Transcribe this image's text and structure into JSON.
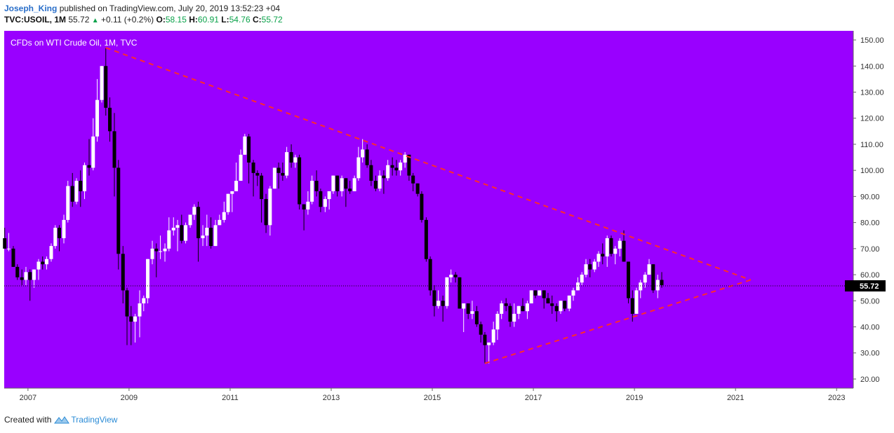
{
  "header": {
    "author": "Joseph_King",
    "published_text": "published on TradingView.com, July 20, 2019 13:52:23 +04",
    "symbol": "TVC:USOIL, 1M",
    "last": "55.72",
    "change": "+0.11 (+0.2%)",
    "open_label": "O:",
    "open": "58.15",
    "high_label": "H:",
    "high": "60.91",
    "low_label": "L:",
    "low": "54.76",
    "close_label": "C:",
    "close": "55.72"
  },
  "footer": {
    "created_with": "Created with",
    "brand": "TradingView"
  },
  "colors": {
    "background": "#9900ff",
    "bull": "#ffffff",
    "bear": "#000000",
    "trendline": "#ff2a2a",
    "axis_bg": "#ffffff"
  },
  "chart_data": {
    "type": "candlestick",
    "title": "CFDs on WTI Crude Oil, 1M, TVC",
    "x_ticks": [
      "2007",
      "2009",
      "2011",
      "2013",
      "2015",
      "2017",
      "2019",
      "2021",
      "2023"
    ],
    "y_ticks": [
      "150.00",
      "140.00",
      "130.00",
      "120.00",
      "110.00",
      "100.00",
      "90.00",
      "80.00",
      "70.00",
      "60.00",
      "50.00",
      "40.00",
      "30.00",
      "20.00"
    ],
    "ylim": [
      16.5,
      153.5
    ],
    "xlim": [
      2006.53,
      2023.33
    ],
    "last_price": 55.72,
    "last_price_label": "55.72",
    "grid": false,
    "candles": [
      {
        "t": 2006.54,
        "o": 74,
        "h": 78,
        "l": 70,
        "c": 70
      },
      {
        "t": 2006.62,
        "o": 70,
        "h": 76,
        "l": 69,
        "c": 70
      },
      {
        "t": 2006.71,
        "o": 70,
        "h": 71,
        "l": 63,
        "c": 63
      },
      {
        "t": 2006.79,
        "o": 63,
        "h": 64,
        "l": 58,
        "c": 59
      },
      {
        "t": 2006.88,
        "o": 59,
        "h": 62,
        "l": 56,
        "c": 58
      },
      {
        "t": 2006.96,
        "o": 58,
        "h": 63,
        "l": 56,
        "c": 61
      },
      {
        "t": 2007.04,
        "o": 61,
        "h": 62,
        "l": 50,
        "c": 58
      },
      {
        "t": 2007.12,
        "o": 58,
        "h": 62,
        "l": 55,
        "c": 62
      },
      {
        "t": 2007.21,
        "o": 62,
        "h": 66,
        "l": 58,
        "c": 65
      },
      {
        "t": 2007.29,
        "o": 65,
        "h": 67,
        "l": 62,
        "c": 64
      },
      {
        "t": 2007.37,
        "o": 64,
        "h": 67,
        "l": 62,
        "c": 66
      },
      {
        "t": 2007.46,
        "o": 66,
        "h": 72,
        "l": 65,
        "c": 71
      },
      {
        "t": 2007.54,
        "o": 71,
        "h": 79,
        "l": 70,
        "c": 78
      },
      {
        "t": 2007.62,
        "o": 78,
        "h": 79,
        "l": 69,
        "c": 74
      },
      {
        "t": 2007.71,
        "o": 74,
        "h": 83,
        "l": 72,
        "c": 81
      },
      {
        "t": 2007.79,
        "o": 81,
        "h": 96,
        "l": 80,
        "c": 94
      },
      {
        "t": 2007.88,
        "o": 94,
        "h": 99,
        "l": 86,
        "c": 88
      },
      {
        "t": 2007.96,
        "o": 88,
        "h": 97,
        "l": 87,
        "c": 96
      },
      {
        "t": 2008.04,
        "o": 96,
        "h": 100,
        "l": 86,
        "c": 92
      },
      {
        "t": 2008.12,
        "o": 92,
        "h": 103,
        "l": 89,
        "c": 102
      },
      {
        "t": 2008.21,
        "o": 102,
        "h": 112,
        "l": 98,
        "c": 101
      },
      {
        "t": 2008.29,
        "o": 101,
        "h": 120,
        "l": 100,
        "c": 113
      },
      {
        "t": 2008.37,
        "o": 113,
        "h": 135,
        "l": 111,
        "c": 127
      },
      {
        "t": 2008.46,
        "o": 127,
        "h": 140,
        "l": 126,
        "c": 140
      },
      {
        "t": 2008.54,
        "o": 140,
        "h": 147,
        "l": 121,
        "c": 124
      },
      {
        "t": 2008.62,
        "o": 124,
        "h": 128,
        "l": 111,
        "c": 115
      },
      {
        "t": 2008.71,
        "o": 115,
        "h": 122,
        "l": 90,
        "c": 101
      },
      {
        "t": 2008.79,
        "o": 101,
        "h": 104,
        "l": 62,
        "c": 68
      },
      {
        "t": 2008.88,
        "o": 68,
        "h": 71,
        "l": 49,
        "c": 54
      },
      {
        "t": 2008.96,
        "o": 54,
        "h": 55,
        "l": 33,
        "c": 44
      },
      {
        "t": 2009.04,
        "o": 44,
        "h": 48,
        "l": 33,
        "c": 42
      },
      {
        "t": 2009.12,
        "o": 42,
        "h": 45,
        "l": 34,
        "c": 44
      },
      {
        "t": 2009.21,
        "o": 44,
        "h": 54,
        "l": 36,
        "c": 49
      },
      {
        "t": 2009.29,
        "o": 49,
        "h": 52,
        "l": 46,
        "c": 51
      },
      {
        "t": 2009.37,
        "o": 51,
        "h": 66,
        "l": 49,
        "c": 66
      },
      {
        "t": 2009.46,
        "o": 66,
        "h": 73,
        "l": 64,
        "c": 70
      },
      {
        "t": 2009.54,
        "o": 70,
        "h": 72,
        "l": 59,
        "c": 69
      },
      {
        "t": 2009.62,
        "o": 69,
        "h": 75,
        "l": 66,
        "c": 69
      },
      {
        "t": 2009.71,
        "o": 69,
        "h": 72,
        "l": 65,
        "c": 70
      },
      {
        "t": 2009.79,
        "o": 70,
        "h": 82,
        "l": 69,
        "c": 77
      },
      {
        "t": 2009.88,
        "o": 77,
        "h": 82,
        "l": 75,
        "c": 78
      },
      {
        "t": 2009.96,
        "o": 78,
        "h": 81,
        "l": 69,
        "c": 79
      },
      {
        "t": 2010.04,
        "o": 79,
        "h": 83,
        "l": 72,
        "c": 73
      },
      {
        "t": 2010.12,
        "o": 73,
        "h": 80,
        "l": 72,
        "c": 79
      },
      {
        "t": 2010.21,
        "o": 79,
        "h": 83,
        "l": 78,
        "c": 83
      },
      {
        "t": 2010.29,
        "o": 83,
        "h": 87,
        "l": 81,
        "c": 86
      },
      {
        "t": 2010.37,
        "o": 86,
        "h": 88,
        "l": 65,
        "c": 74
      },
      {
        "t": 2010.46,
        "o": 74,
        "h": 79,
        "l": 71,
        "c": 75
      },
      {
        "t": 2010.54,
        "o": 75,
        "h": 83,
        "l": 71,
        "c": 78
      },
      {
        "t": 2010.62,
        "o": 78,
        "h": 82,
        "l": 70,
        "c": 71
      },
      {
        "t": 2010.71,
        "o": 71,
        "h": 81,
        "l": 71,
        "c": 79
      },
      {
        "t": 2010.79,
        "o": 79,
        "h": 83,
        "l": 79,
        "c": 81
      },
      {
        "t": 2010.88,
        "o": 81,
        "h": 88,
        "l": 80,
        "c": 84
      },
      {
        "t": 2010.96,
        "o": 84,
        "h": 91,
        "l": 83,
        "c": 91
      },
      {
        "t": 2011.04,
        "o": 91,
        "h": 92,
        "l": 84,
        "c": 92
      },
      {
        "t": 2011.12,
        "o": 92,
        "h": 103,
        "l": 92,
        "c": 96
      },
      {
        "t": 2011.21,
        "o": 96,
        "h": 108,
        "l": 96,
        "c": 106
      },
      {
        "t": 2011.29,
        "o": 106,
        "h": 114,
        "l": 106,
        "c": 113
      },
      {
        "t": 2011.37,
        "o": 113,
        "h": 114,
        "l": 95,
        "c": 103
      },
      {
        "t": 2011.46,
        "o": 103,
        "h": 104,
        "l": 90,
        "c": 99
      },
      {
        "t": 2011.54,
        "o": 99,
        "h": 100,
        "l": 94,
        "c": 98
      },
      {
        "t": 2011.62,
        "o": 98,
        "h": 99,
        "l": 80,
        "c": 89
      },
      {
        "t": 2011.71,
        "o": 89,
        "h": 91,
        "l": 76,
        "c": 79
      },
      {
        "t": 2011.79,
        "o": 79,
        "h": 94,
        "l": 75,
        "c": 93
      },
      {
        "t": 2011.88,
        "o": 93,
        "h": 101,
        "l": 93,
        "c": 101
      },
      {
        "t": 2011.96,
        "o": 101,
        "h": 103,
        "l": 93,
        "c": 99
      },
      {
        "t": 2012.04,
        "o": 99,
        "h": 103,
        "l": 96,
        "c": 98
      },
      {
        "t": 2012.12,
        "o": 98,
        "h": 109,
        "l": 97,
        "c": 107
      },
      {
        "t": 2012.21,
        "o": 107,
        "h": 110,
        "l": 101,
        "c": 103
      },
      {
        "t": 2012.29,
        "o": 103,
        "h": 106,
        "l": 101,
        "c": 105
      },
      {
        "t": 2012.37,
        "o": 105,
        "h": 106,
        "l": 85,
        "c": 87
      },
      {
        "t": 2012.46,
        "o": 87,
        "h": 87,
        "l": 77,
        "c": 85
      },
      {
        "t": 2012.54,
        "o": 85,
        "h": 92,
        "l": 83,
        "c": 88
      },
      {
        "t": 2012.62,
        "o": 88,
        "h": 98,
        "l": 87,
        "c": 96
      },
      {
        "t": 2012.71,
        "o": 96,
        "h": 100,
        "l": 90,
        "c": 92
      },
      {
        "t": 2012.79,
        "o": 92,
        "h": 93,
        "l": 84,
        "c": 86
      },
      {
        "t": 2012.88,
        "o": 86,
        "h": 90,
        "l": 84,
        "c": 89
      },
      {
        "t": 2012.96,
        "o": 89,
        "h": 92,
        "l": 85,
        "c": 92
      },
      {
        "t": 2013.04,
        "o": 92,
        "h": 98,
        "l": 91,
        "c": 98
      },
      {
        "t": 2013.12,
        "o": 98,
        "h": 98,
        "l": 90,
        "c": 92
      },
      {
        "t": 2013.21,
        "o": 92,
        "h": 98,
        "l": 90,
        "c": 97
      },
      {
        "t": 2013.29,
        "o": 97,
        "h": 97,
        "l": 86,
        "c": 93
      },
      {
        "t": 2013.37,
        "o": 93,
        "h": 96,
        "l": 91,
        "c": 92
      },
      {
        "t": 2013.46,
        "o": 92,
        "h": 98,
        "l": 92,
        "c": 97
      },
      {
        "t": 2013.54,
        "o": 97,
        "h": 109,
        "l": 96,
        "c": 105
      },
      {
        "t": 2013.62,
        "o": 105,
        "h": 112,
        "l": 103,
        "c": 108
      },
      {
        "t": 2013.71,
        "o": 108,
        "h": 110,
        "l": 101,
        "c": 102
      },
      {
        "t": 2013.79,
        "o": 102,
        "h": 104,
        "l": 94,
        "c": 96
      },
      {
        "t": 2013.88,
        "o": 96,
        "h": 98,
        "l": 92,
        "c": 93
      },
      {
        "t": 2013.96,
        "o": 93,
        "h": 100,
        "l": 92,
        "c": 98
      },
      {
        "t": 2014.04,
        "o": 98,
        "h": 100,
        "l": 91,
        "c": 97
      },
      {
        "t": 2014.12,
        "o": 97,
        "h": 104,
        "l": 96,
        "c": 102
      },
      {
        "t": 2014.21,
        "o": 102,
        "h": 105,
        "l": 98,
        "c": 101
      },
      {
        "t": 2014.29,
        "o": 101,
        "h": 104,
        "l": 98,
        "c": 100
      },
      {
        "t": 2014.37,
        "o": 100,
        "h": 104,
        "l": 98,
        "c": 103
      },
      {
        "t": 2014.46,
        "o": 103,
        "h": 107,
        "l": 101,
        "c": 106
      },
      {
        "t": 2014.54,
        "o": 106,
        "h": 106,
        "l": 96,
        "c": 98
      },
      {
        "t": 2014.62,
        "o": 98,
        "h": 99,
        "l": 92,
        "c": 95
      },
      {
        "t": 2014.71,
        "o": 95,
        "h": 95,
        "l": 90,
        "c": 91
      },
      {
        "t": 2014.79,
        "o": 91,
        "h": 92,
        "l": 80,
        "c": 81
      },
      {
        "t": 2014.88,
        "o": 81,
        "h": 82,
        "l": 65,
        "c": 66
      },
      {
        "t": 2014.96,
        "o": 66,
        "h": 67,
        "l": 52,
        "c": 54
      },
      {
        "t": 2015.04,
        "o": 54,
        "h": 56,
        "l": 44,
        "c": 48
      },
      {
        "t": 2015.12,
        "o": 48,
        "h": 54,
        "l": 47,
        "c": 50
      },
      {
        "t": 2015.21,
        "o": 50,
        "h": 52,
        "l": 42,
        "c": 48
      },
      {
        "t": 2015.29,
        "o": 48,
        "h": 59,
        "l": 47,
        "c": 59
      },
      {
        "t": 2015.37,
        "o": 59,
        "h": 62,
        "l": 57,
        "c": 60
      },
      {
        "t": 2015.46,
        "o": 60,
        "h": 61,
        "l": 57,
        "c": 59
      },
      {
        "t": 2015.54,
        "o": 59,
        "h": 59,
        "l": 47,
        "c": 47
      },
      {
        "t": 2015.62,
        "o": 47,
        "h": 49,
        "l": 38,
        "c": 49
      },
      {
        "t": 2015.71,
        "o": 49,
        "h": 49,
        "l": 43,
        "c": 45
      },
      {
        "t": 2015.79,
        "o": 45,
        "h": 50,
        "l": 43,
        "c": 46
      },
      {
        "t": 2015.88,
        "o": 46,
        "h": 48,
        "l": 40,
        "c": 41
      },
      {
        "t": 2015.96,
        "o": 41,
        "h": 42,
        "l": 34,
        "c": 37
      },
      {
        "t": 2016.04,
        "o": 37,
        "h": 38,
        "l": 26,
        "c": 33
      },
      {
        "t": 2016.12,
        "o": 33,
        "h": 34,
        "l": 26,
        "c": 34
      },
      {
        "t": 2016.21,
        "o": 34,
        "h": 42,
        "l": 33,
        "c": 39
      },
      {
        "t": 2016.29,
        "o": 39,
        "h": 46,
        "l": 35,
        "c": 45
      },
      {
        "t": 2016.37,
        "o": 45,
        "h": 50,
        "l": 43,
        "c": 49
      },
      {
        "t": 2016.46,
        "o": 49,
        "h": 51,
        "l": 46,
        "c": 48
      },
      {
        "t": 2016.54,
        "o": 48,
        "h": 49,
        "l": 40,
        "c": 42
      },
      {
        "t": 2016.62,
        "o": 42,
        "h": 49,
        "l": 40,
        "c": 45
      },
      {
        "t": 2016.71,
        "o": 45,
        "h": 48,
        "l": 43,
        "c": 48
      },
      {
        "t": 2016.79,
        "o": 48,
        "h": 51,
        "l": 46,
        "c": 46
      },
      {
        "t": 2016.88,
        "o": 46,
        "h": 50,
        "l": 43,
        "c": 49
      },
      {
        "t": 2016.96,
        "o": 49,
        "h": 54,
        "l": 49,
        "c": 54
      },
      {
        "t": 2017.04,
        "o": 54,
        "h": 54,
        "l": 51,
        "c": 52
      },
      {
        "t": 2017.12,
        "o": 52,
        "h": 54,
        "l": 52,
        "c": 54
      },
      {
        "t": 2017.21,
        "o": 54,
        "h": 54,
        "l": 47,
        "c": 51
      },
      {
        "t": 2017.29,
        "o": 51,
        "h": 53,
        "l": 49,
        "c": 49
      },
      {
        "t": 2017.37,
        "o": 49,
        "h": 52,
        "l": 45,
        "c": 48
      },
      {
        "t": 2017.46,
        "o": 48,
        "h": 49,
        "l": 42,
        "c": 46
      },
      {
        "t": 2017.54,
        "o": 46,
        "h": 50,
        "l": 45,
        "c": 50
      },
      {
        "t": 2017.62,
        "o": 50,
        "h": 50,
        "l": 46,
        "c": 47
      },
      {
        "t": 2017.71,
        "o": 47,
        "h": 52,
        "l": 46,
        "c": 52
      },
      {
        "t": 2017.79,
        "o": 52,
        "h": 55,
        "l": 50,
        "c": 54
      },
      {
        "t": 2017.88,
        "o": 54,
        "h": 59,
        "l": 54,
        "c": 57
      },
      {
        "t": 2017.96,
        "o": 57,
        "h": 61,
        "l": 56,
        "c": 60
      },
      {
        "t": 2018.04,
        "o": 60,
        "h": 66,
        "l": 59,
        "c": 64
      },
      {
        "t": 2018.12,
        "o": 64,
        "h": 66,
        "l": 59,
        "c": 62
      },
      {
        "t": 2018.21,
        "o": 62,
        "h": 66,
        "l": 61,
        "c": 65
      },
      {
        "t": 2018.29,
        "o": 65,
        "h": 69,
        "l": 63,
        "c": 68
      },
      {
        "t": 2018.37,
        "o": 68,
        "h": 72,
        "l": 64,
        "c": 67
      },
      {
        "t": 2018.46,
        "o": 67,
        "h": 75,
        "l": 63,
        "c": 74
      },
      {
        "t": 2018.54,
        "o": 74,
        "h": 75,
        "l": 67,
        "c": 68
      },
      {
        "t": 2018.62,
        "o": 68,
        "h": 71,
        "l": 64,
        "c": 70
      },
      {
        "t": 2018.71,
        "o": 70,
        "h": 74,
        "l": 67,
        "c": 73
      },
      {
        "t": 2018.79,
        "o": 73,
        "h": 77,
        "l": 65,
        "c": 65
      },
      {
        "t": 2018.88,
        "o": 65,
        "h": 65,
        "l": 49,
        "c": 51
      },
      {
        "t": 2018.96,
        "o": 51,
        "h": 54,
        "l": 42,
        "c": 45
      },
      {
        "t": 2019.04,
        "o": 45,
        "h": 55,
        "l": 45,
        "c": 54
      },
      {
        "t": 2019.12,
        "o": 54,
        "h": 58,
        "l": 51,
        "c": 57
      },
      {
        "t": 2019.21,
        "o": 57,
        "h": 61,
        "l": 55,
        "c": 60
      },
      {
        "t": 2019.29,
        "o": 60,
        "h": 66,
        "l": 60,
        "c": 64
      },
      {
        "t": 2019.37,
        "o": 64,
        "h": 64,
        "l": 53,
        "c": 54
      },
      {
        "t": 2019.46,
        "o": 54,
        "h": 60,
        "l": 51,
        "c": 58
      },
      {
        "t": 2019.54,
        "o": 58,
        "h": 61,
        "l": 55,
        "c": 56
      }
    ],
    "trendlines": [
      {
        "name": "upper",
        "from": {
          "t": 2008.54,
          "p": 147
        },
        "to": {
          "t": 2021.3,
          "p": 58
        }
      },
      {
        "name": "lower",
        "from": {
          "t": 2016.04,
          "p": 26
        },
        "to": {
          "t": 2021.3,
          "p": 58
        }
      }
    ]
  }
}
